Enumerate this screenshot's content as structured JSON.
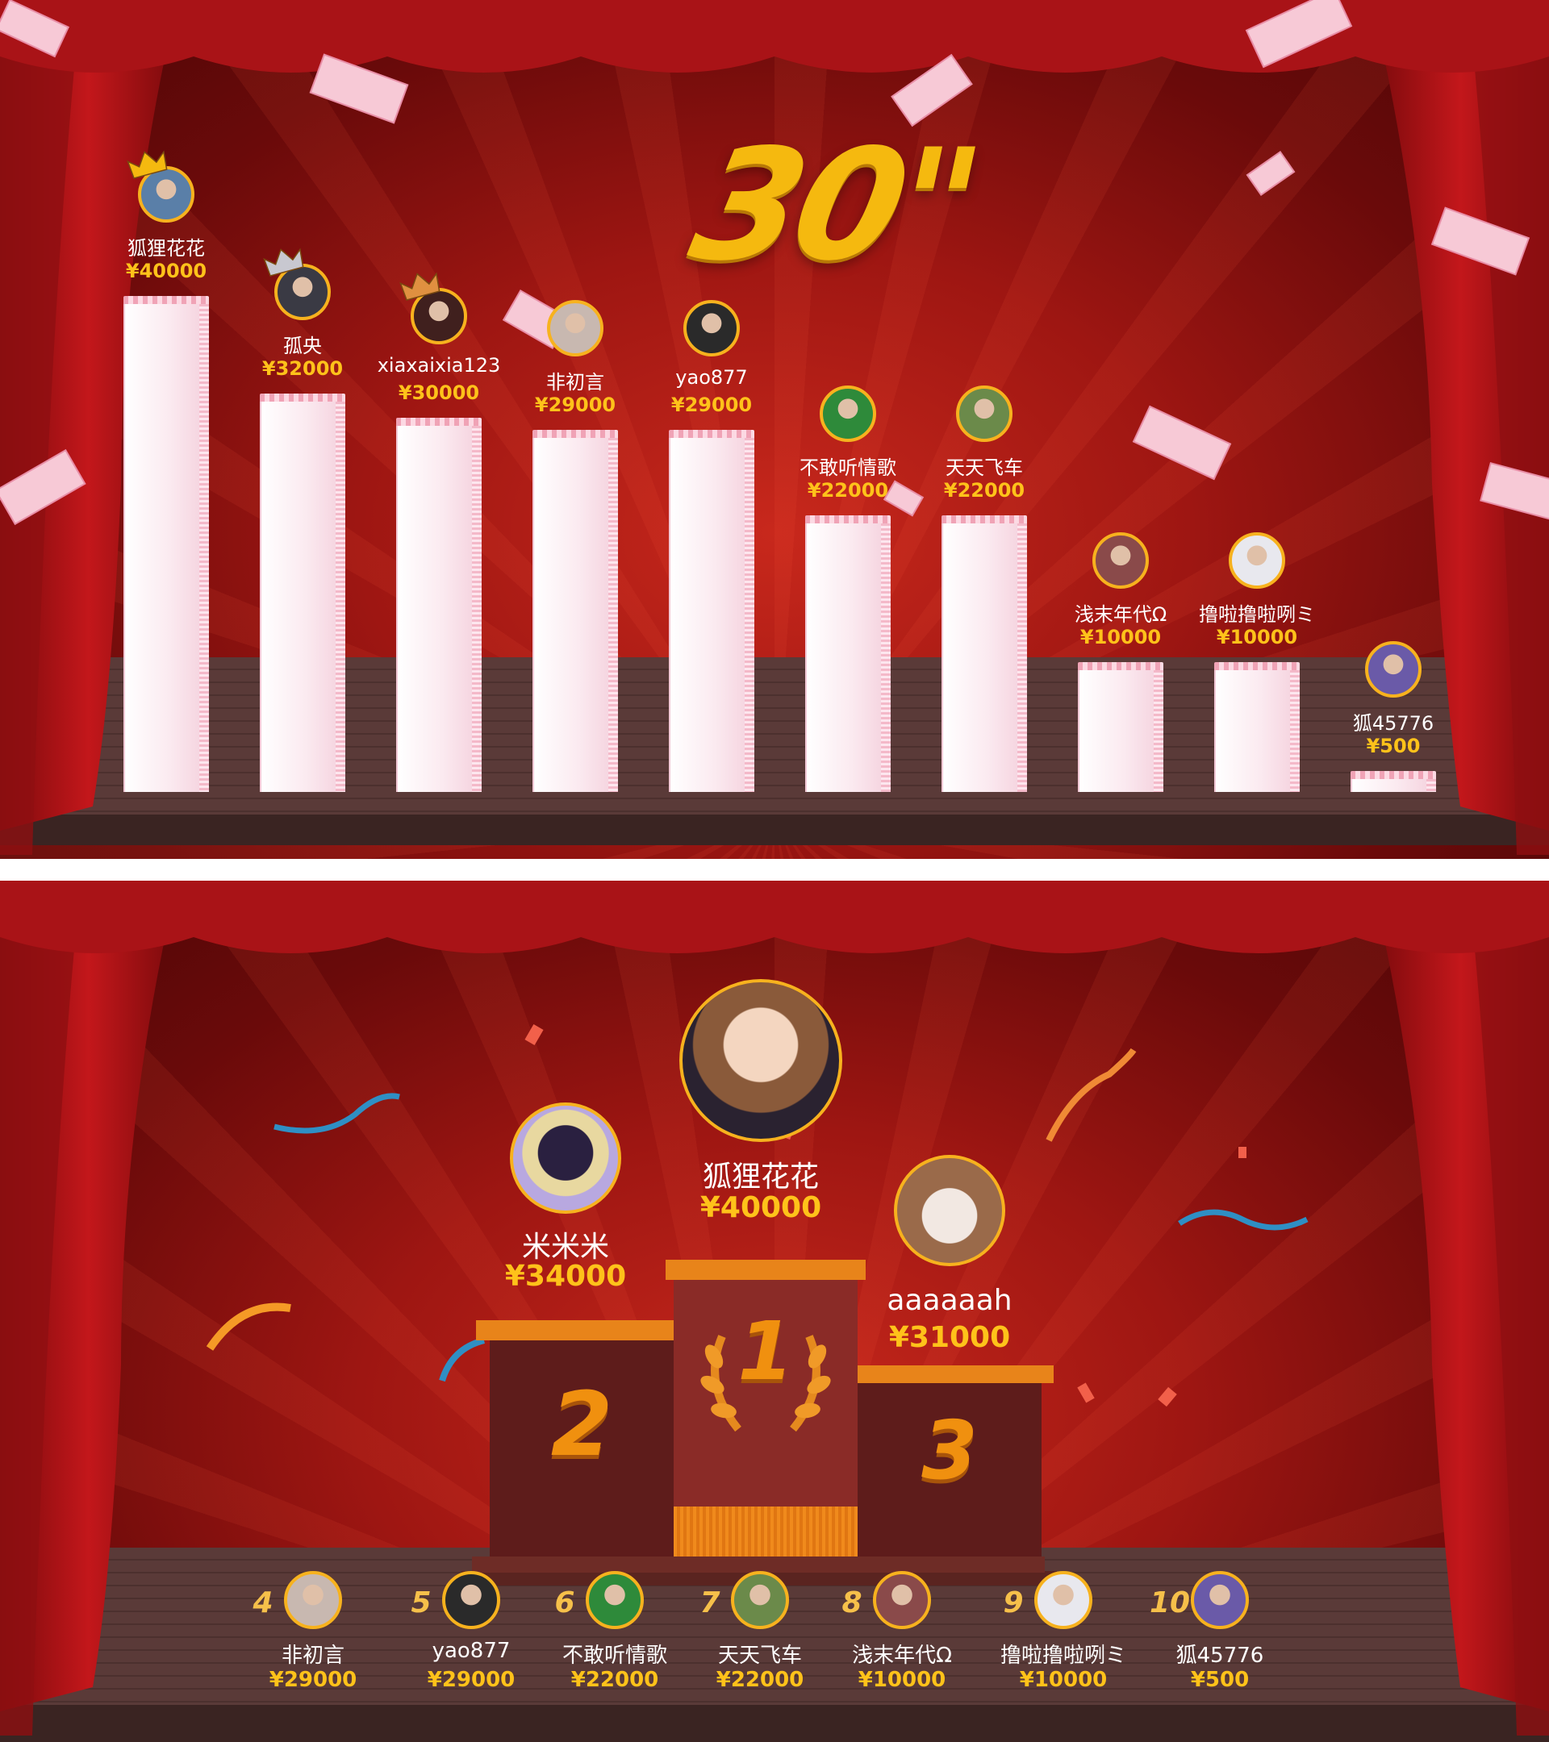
{
  "top_panel": {
    "timer": "30\"",
    "leaders": [
      {
        "name": "狐狸花花",
        "amount": "¥40000",
        "value": 40000,
        "crown": "gold-crown-icon"
      },
      {
        "name": "孤央",
        "amount": "¥32000",
        "value": 32000,
        "crown": "silver-crown-icon"
      },
      {
        "name": "xiaxaixia123",
        "amount": "¥30000",
        "value": 30000,
        "crown": "bronze-crown-icon"
      },
      {
        "name": "非初言",
        "amount": "¥29000",
        "value": 29000,
        "crown": ""
      },
      {
        "name": "yao877",
        "amount": "¥29000",
        "value": 29000,
        "crown": ""
      },
      {
        "name": "不敢听情歌",
        "amount": "¥22000",
        "value": 22000,
        "crown": ""
      },
      {
        "name": "天天飞车",
        "amount": "¥22000",
        "value": 22000,
        "crown": ""
      },
      {
        "name": "浅末年代Ω",
        "amount": "¥10000",
        "value": 10000,
        "crown": ""
      },
      {
        "name": "撸啦撸啦咧ミ",
        "amount": "¥10000",
        "value": 10000,
        "crown": ""
      },
      {
        "name": "狐45776",
        "amount": "¥500",
        "value": 500,
        "crown": ""
      }
    ]
  },
  "bottom_panel": {
    "podium": {
      "first": {
        "name": "狐狸花花",
        "amount": "¥40000",
        "place": "1"
      },
      "second": {
        "name": "米米米",
        "amount": "¥34000",
        "place": "2"
      },
      "third": {
        "name": "aaaaaah",
        "amount": "¥31000",
        "place": "3"
      }
    },
    "ranking": [
      {
        "rank": "4",
        "name": "非初言",
        "amount": "¥29000"
      },
      {
        "rank": "5",
        "name": "yao877",
        "amount": "¥29000"
      },
      {
        "rank": "6",
        "name": "不敢听情歌",
        "amount": "¥22000"
      },
      {
        "rank": "7",
        "name": "天天飞车",
        "amount": "¥22000"
      },
      {
        "rank": "8",
        "name": "浅末年代Ω",
        "amount": "¥10000"
      },
      {
        "rank": "9",
        "name": "撸啦撸啦咧ミ",
        "amount": "¥10000"
      },
      {
        "rank": "10",
        "name": "狐45776",
        "amount": "¥500"
      }
    ]
  },
  "colors": {
    "accent": "#ffc21a",
    "curtain": "#b5161a",
    "gold_border": "#f7b21e",
    "podium_orange": "#e8841a"
  }
}
